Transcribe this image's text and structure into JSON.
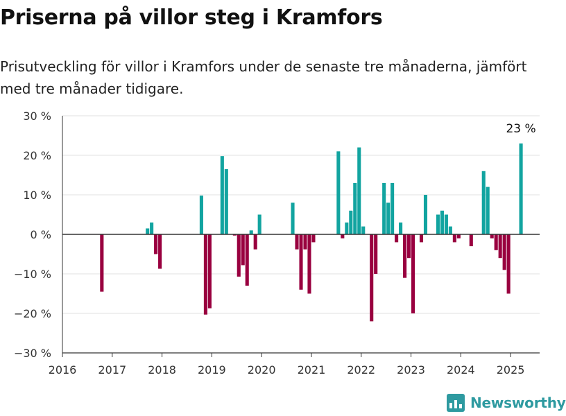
{
  "header": {
    "title": "Priserna på villor steg i Kramfors",
    "subtitle": "Prisutveckling för villor i Kramfors under de senaste tre månaderna, jämfört med tre månader tidigare."
  },
  "brand": {
    "name": "Newsworthy",
    "icon": "bar-chart-logo-icon"
  },
  "colors": {
    "positive": "#12a4a0",
    "negative": "#99003f",
    "grid": "#e0e0e0",
    "axis": "#333333"
  },
  "chart_data": {
    "type": "bar",
    "title": "Priserna på villor steg i Kramfors",
    "xlabel": "",
    "ylabel": "",
    "ylim": [
      -30,
      30
    ],
    "y_ticks": [
      -30,
      -20,
      -10,
      0,
      10,
      20,
      30
    ],
    "y_tick_labels": [
      "−30 %",
      "−20 %",
      "−10 %",
      "0 %",
      "10 %",
      "20 %",
      "30 %"
    ],
    "x_range": [
      "2016-01",
      "2025-08"
    ],
    "x_ticks": [
      "2016",
      "2017",
      "2018",
      "2019",
      "2020",
      "2021",
      "2022",
      "2023",
      "2024",
      "2025"
    ],
    "grid": true,
    "annotation": {
      "date": "2025-03",
      "text": "23 %"
    },
    "series": [
      {
        "points": [
          {
            "date": "2016-10",
            "value": -14.5
          },
          {
            "date": "2017-09",
            "value": 1.5
          },
          {
            "date": "2017-10",
            "value": 3
          },
          {
            "date": "2017-11",
            "value": -5
          },
          {
            "date": "2017-12",
            "value": -8.7
          },
          {
            "date": "2018-10",
            "value": 9.8
          },
          {
            "date": "2018-11",
            "value": -20.3
          },
          {
            "date": "2018-12",
            "value": -18.7
          },
          {
            "date": "2019-03",
            "value": 19.8
          },
          {
            "date": "2019-04",
            "value": 16.5
          },
          {
            "date": "2019-06",
            "value": -0.3
          },
          {
            "date": "2019-07",
            "value": -10.7
          },
          {
            "date": "2019-08",
            "value": -7.8
          },
          {
            "date": "2019-09",
            "value": -13
          },
          {
            "date": "2019-10",
            "value": 1
          },
          {
            "date": "2019-11",
            "value": -3.8
          },
          {
            "date": "2019-12",
            "value": 5
          },
          {
            "date": "2020-08",
            "value": 8
          },
          {
            "date": "2020-09",
            "value": -3.8
          },
          {
            "date": "2020-10",
            "value": -14
          },
          {
            "date": "2020-11",
            "value": -3.8
          },
          {
            "date": "2020-12",
            "value": -15
          },
          {
            "date": "2021-01",
            "value": -2
          },
          {
            "date": "2021-07",
            "value": 21
          },
          {
            "date": "2021-08",
            "value": -1
          },
          {
            "date": "2021-09",
            "value": 3
          },
          {
            "date": "2021-10",
            "value": 6
          },
          {
            "date": "2021-11",
            "value": 13
          },
          {
            "date": "2021-12",
            "value": 22
          },
          {
            "date": "2022-01",
            "value": 2
          },
          {
            "date": "2022-03",
            "value": -22
          },
          {
            "date": "2022-04",
            "value": -10
          },
          {
            "date": "2022-06",
            "value": 13
          },
          {
            "date": "2022-07",
            "value": 8
          },
          {
            "date": "2022-08",
            "value": 13
          },
          {
            "date": "2022-09",
            "value": -2
          },
          {
            "date": "2022-10",
            "value": 3
          },
          {
            "date": "2022-11",
            "value": -11
          },
          {
            "date": "2022-12",
            "value": -6
          },
          {
            "date": "2023-01",
            "value": -20
          },
          {
            "date": "2023-03",
            "value": -2
          },
          {
            "date": "2023-04",
            "value": 10
          },
          {
            "date": "2023-07",
            "value": 5
          },
          {
            "date": "2023-08",
            "value": 6
          },
          {
            "date": "2023-09",
            "value": 5
          },
          {
            "date": "2023-10",
            "value": 2
          },
          {
            "date": "2023-11",
            "value": -2
          },
          {
            "date": "2023-12",
            "value": -1
          },
          {
            "date": "2024-03",
            "value": -3
          },
          {
            "date": "2024-06",
            "value": 16
          },
          {
            "date": "2024-07",
            "value": 12
          },
          {
            "date": "2024-08",
            "value": -1
          },
          {
            "date": "2024-09",
            "value": -4
          },
          {
            "date": "2024-10",
            "value": -6
          },
          {
            "date": "2024-11",
            "value": -9
          },
          {
            "date": "2024-12",
            "value": -15
          },
          {
            "date": "2025-03",
            "value": 23
          }
        ]
      }
    ]
  }
}
